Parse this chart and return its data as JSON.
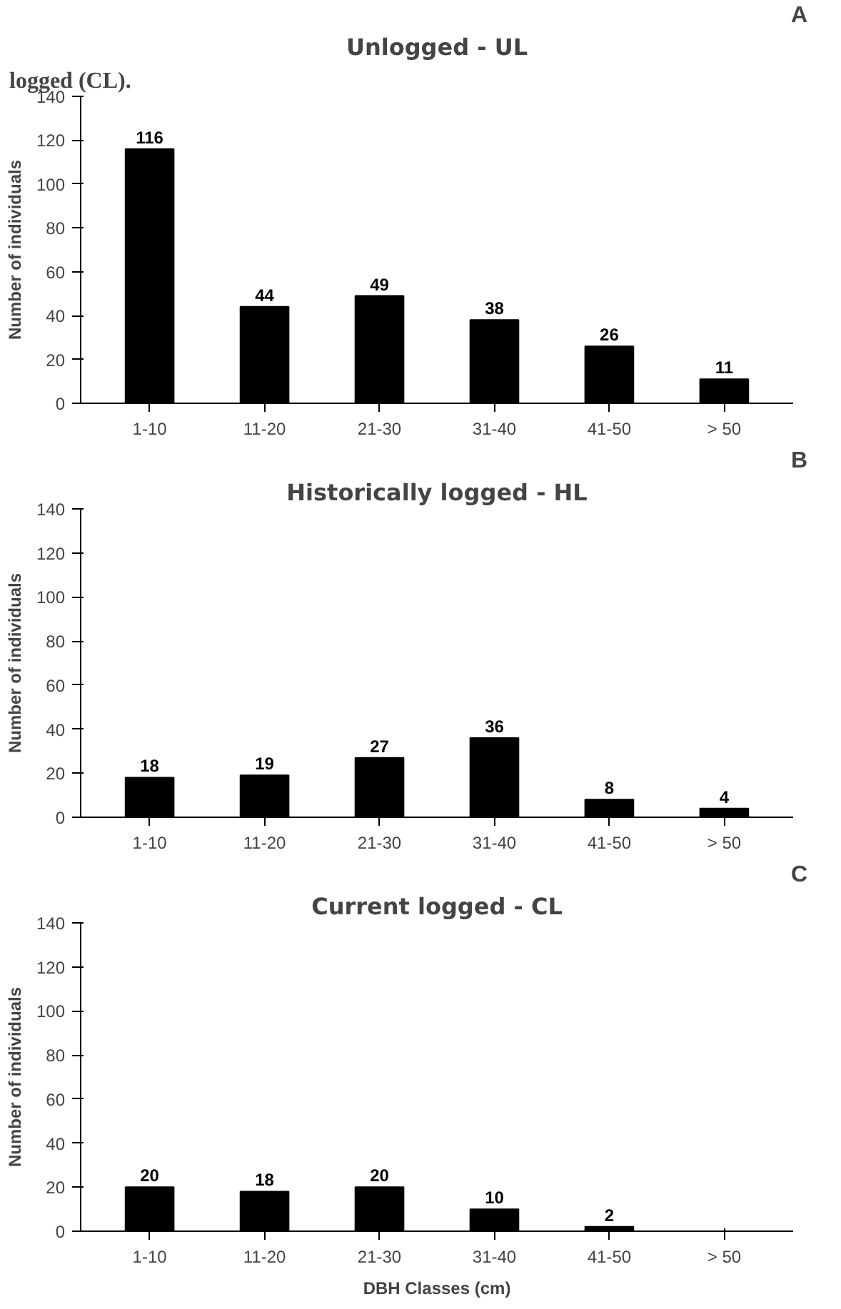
{
  "chart_data": [
    {
      "type": "bar",
      "title": "Unlogged - UL",
      "ylabel": "Number of individuals",
      "categories": [
        "1-10",
        "11-20",
        "21-30",
        "31-40",
        "41-50",
        "> 50"
      ],
      "values": [
        116,
        44,
        49,
        38,
        26,
        11
      ],
      "color": "#000000",
      "ylim": [
        0,
        140
      ],
      "yticks": [
        0,
        20,
        40,
        60,
        80,
        100,
        120,
        140
      ],
      "grid": false,
      "data_labels": true,
      "annotations": [
        "logged (CL).",
        "A"
      ]
    },
    {
      "type": "bar",
      "title": "Historically logged - HL",
      "ylabel": "Number of individuals",
      "categories": [
        "1-10",
        "11-20",
        "21-30",
        "31-40",
        "41-50",
        "> 50"
      ],
      "values": [
        18,
        19,
        27,
        36,
        8,
        4
      ],
      "color": "#000000",
      "ylim": [
        0,
        140
      ],
      "yticks": [
        0,
        20,
        40,
        60,
        80,
        100,
        120,
        140
      ],
      "grid": false,
      "data_labels": true,
      "annotations": [
        "B"
      ]
    },
    {
      "type": "bar",
      "title": "Current logged - CL",
      "ylabel": "Number of individuals",
      "xlabel": "DBH Classes (cm)",
      "categories": [
        "1-10",
        "11-20",
        "21-30",
        "31-40",
        "41-50",
        "> 50"
      ],
      "values": [
        20,
        18,
        20,
        10,
        2,
        null
      ],
      "color": "#000000",
      "ylim": [
        0,
        140
      ],
      "yticks": [
        0,
        20,
        40,
        60,
        80,
        100,
        120,
        140
      ],
      "grid": false,
      "data_labels": true,
      "annotations": [
        "C"
      ]
    }
  ]
}
